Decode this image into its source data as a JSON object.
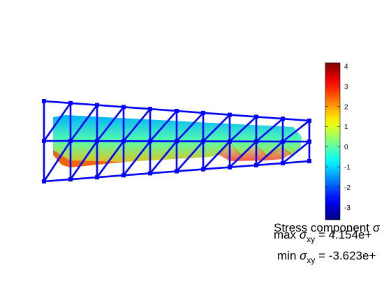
{
  "chart_data": {
    "type": "heatmap",
    "colormap": "jet",
    "colorbar": {
      "location": "right",
      "limits": [
        -3.623,
        4.154
      ],
      "ticks": [
        4,
        3,
        2,
        1,
        0,
        -1,
        -2,
        -3
      ],
      "tick_labels": [
        "4",
        "3",
        "2",
        "1",
        "0",
        "-1",
        "-2",
        "-3"
      ]
    },
    "mesh": {
      "color": "#0000ff",
      "nodes_per_row": 11,
      "rows": 3
    },
    "stress_field": {
      "top_value": -1.3,
      "bottom_value": 1.8,
      "notch_top_value": 0.4,
      "notch_bottom_value": 3.0
    },
    "annotations": {
      "title": "Stress component σ",
      "max_label": "max",
      "min_label": "min",
      "symbol": "σ",
      "subscript": "xy",
      "max_value": " =  4.154e+",
      "min_value": " =  -3.623e+"
    }
  }
}
